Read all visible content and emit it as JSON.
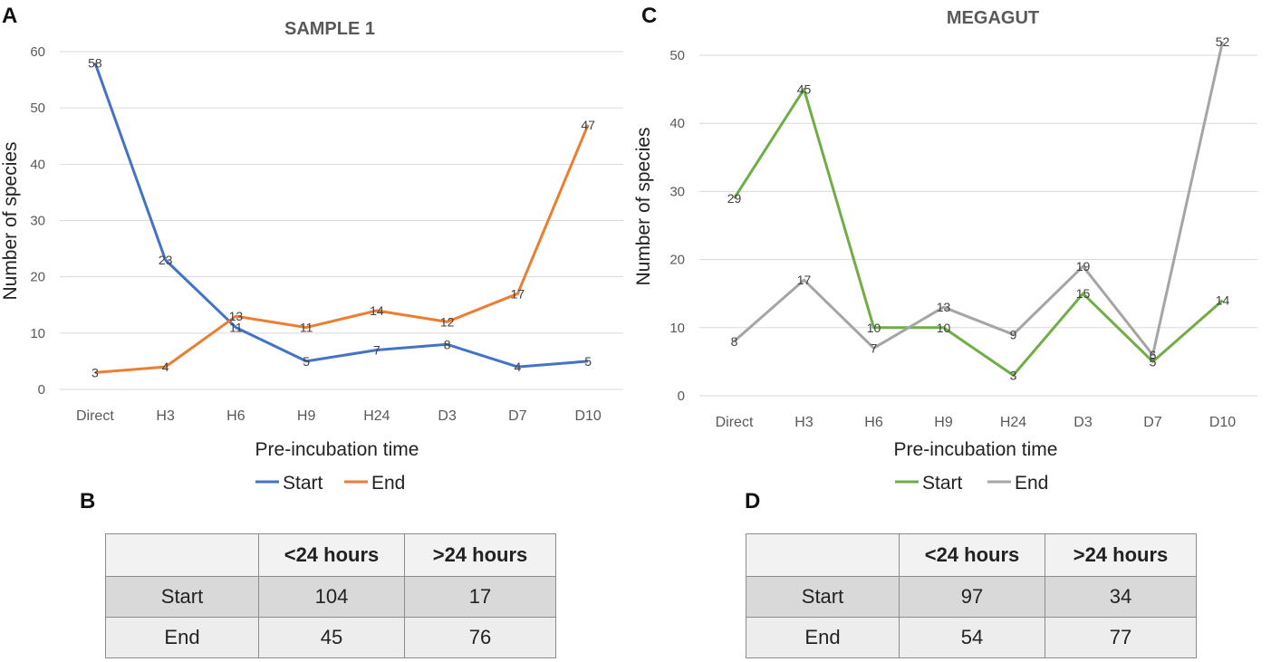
{
  "panels": [
    {
      "letter": "A",
      "chart_data": {
        "type": "line",
        "title": "SAMPLE 1",
        "xlabel": "Pre-incubation time",
        "ylabel": "Number of species",
        "categories": [
          "Direct",
          "H3",
          "H6",
          "H9",
          "H24",
          "D3",
          "D7",
          "D10"
        ],
        "ylim": [
          0,
          60
        ],
        "yticks": [
          0,
          10,
          20,
          30,
          40,
          50,
          60
        ],
        "grid": true,
        "legend": "bottom",
        "series": [
          {
            "name": "Start",
            "color": "#4472c4",
            "values": [
              58,
              23,
              11,
              5,
              7,
              8,
              4,
              5
            ]
          },
          {
            "name": "End",
            "color": "#ed7d31",
            "values": [
              3,
              4,
              13,
              11,
              14,
              12,
              17,
              47
            ]
          }
        ]
      }
    },
    {
      "letter": "C",
      "chart_data": {
        "type": "line",
        "title": "MEGAGUT",
        "xlabel": "Pre-incubation time",
        "ylabel": "Number of species",
        "categories": [
          "Direct",
          "H3",
          "H6",
          "H9",
          "H24",
          "D3",
          "D7",
          "D10"
        ],
        "ylim": [
          0,
          50
        ],
        "yticks": [
          0,
          10,
          20,
          30,
          40,
          50
        ],
        "grid": true,
        "legend": "bottom",
        "series": [
          {
            "name": "Start",
            "color": "#70ad47",
            "values": [
              29,
              45,
              10,
              10,
              3,
              15,
              5,
              14
            ]
          },
          {
            "name": "End",
            "color": "#a5a5a5",
            "values": [
              8,
              17,
              7,
              13,
              9,
              19,
              6,
              52
            ]
          }
        ]
      }
    }
  ],
  "tables": [
    {
      "letter": "B",
      "columns": [
        "",
        "<24 hours",
        ">24 hours"
      ],
      "rows": [
        {
          "label": "Start",
          "lt24": "104",
          "gt24": "17"
        },
        {
          "label": "End",
          "lt24": "45",
          "gt24": "76"
        }
      ]
    },
    {
      "letter": "D",
      "columns": [
        "",
        "<24 hours",
        ">24 hours"
      ],
      "rows": [
        {
          "label": "Start",
          "lt24": "97",
          "gt24": "34"
        },
        {
          "label": "End",
          "lt24": "54",
          "gt24": "77"
        }
      ]
    }
  ]
}
